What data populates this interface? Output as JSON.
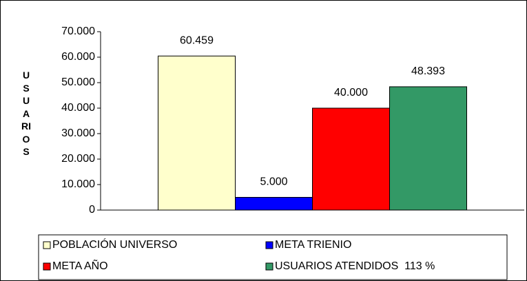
{
  "chart_data": {
    "type": "bar",
    "y_label": "USUARIOS",
    "categories": [
      null
    ],
    "series": [
      {
        "name": "POBLACIÓN UNIVERSO",
        "color": "#FFFFCC",
        "values": [
          60459
        ],
        "value_labels": [
          "60.459"
        ]
      },
      {
        "name": "META TRIENIO",
        "color": "#0000FF",
        "values": [
          5000
        ],
        "value_labels": [
          "5.000"
        ]
      },
      {
        "name": "META AÑO",
        "color": "#FF0000",
        "values": [
          40000
        ],
        "value_labels": [
          "40.000"
        ]
      },
      {
        "name": "USUARIOS ATENDIDOS  113 %",
        "color": "#339966",
        "values": [
          48393
        ],
        "value_labels": [
          "48.393"
        ]
      }
    ],
    "ylim": [
      0,
      70000
    ],
    "yticks": [
      0,
      {
        "value": 10000,
        "label": "10.000"
      },
      {
        "value": 20000,
        "label": "20.000"
      },
      {
        "value": 30000,
        "label": "30.000"
      },
      {
        "value": 40000,
        "label": "40.000"
      },
      {
        "value": 50000,
        "label": "50.000"
      },
      {
        "value": 60000,
        "label": "60.000"
      },
      {
        "value": 70000,
        "label": "70.000"
      }
    ],
    "grid": false,
    "legend": "bottom"
  }
}
